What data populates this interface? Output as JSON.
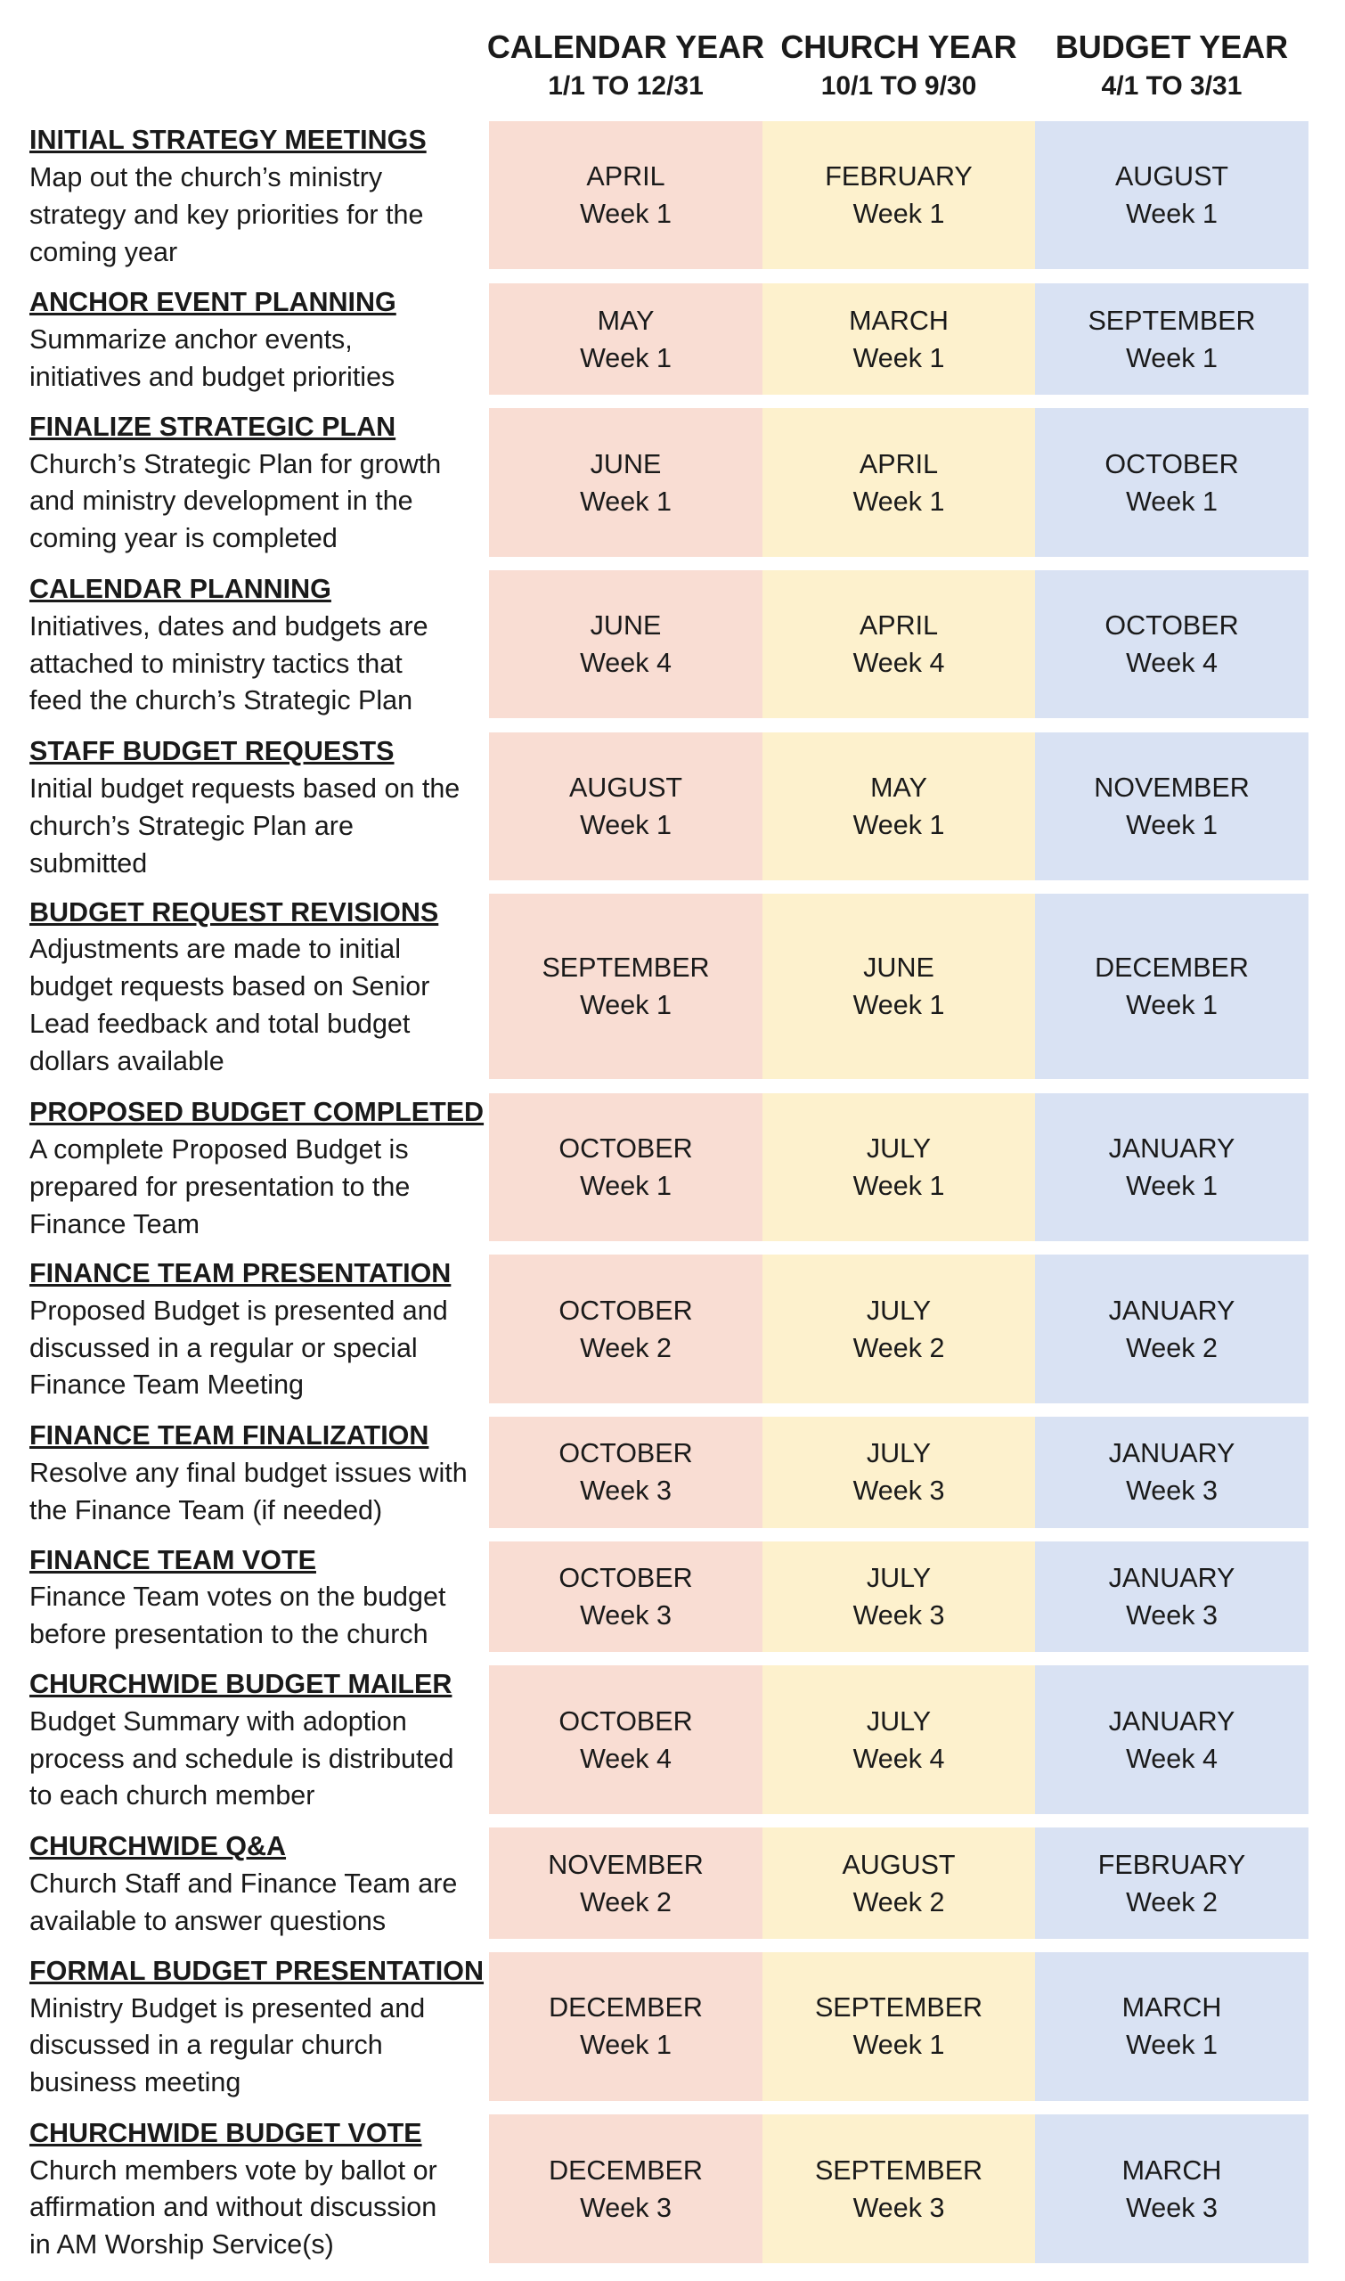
{
  "header": {
    "columns": [
      {
        "title": "CALENDAR YEAR",
        "range": "1/1 TO 12/31"
      },
      {
        "title": "CHURCH YEAR",
        "range": "10/1 TO 9/30"
      },
      {
        "title": "BUDGET YEAR",
        "range": "4/1 TO 3/31"
      }
    ]
  },
  "rows": [
    {
      "heading": "INITIAL STRATEGY MEETINGS",
      "lines": [
        "Map out the church’s ministry",
        "strategy and key priorities for the",
        "coming year"
      ],
      "cells": [
        {
          "month": "APRIL",
          "week": "Week 1"
        },
        {
          "month": "FEBRUARY",
          "week": "Week 1"
        },
        {
          "month": "AUGUST",
          "week": "Week 1"
        }
      ]
    },
    {
      "heading": "ANCHOR EVENT PLANNING",
      "lines": [
        "Summarize anchor events,",
        "initiatives and budget priorities"
      ],
      "cells": [
        {
          "month": "MAY",
          "week": "Week 1"
        },
        {
          "month": "MARCH",
          "week": "Week 1"
        },
        {
          "month": "SEPTEMBER",
          "week": "Week 1"
        }
      ]
    },
    {
      "heading": "FINALIZE STRATEGIC PLAN",
      "lines": [
        "Church’s Strategic Plan for growth",
        "and ministry development in the",
        "coming year is completed"
      ],
      "cells": [
        {
          "month": "JUNE",
          "week": "Week 1"
        },
        {
          "month": "APRIL",
          "week": "Week 1"
        },
        {
          "month": "OCTOBER",
          "week": "Week 1"
        }
      ]
    },
    {
      "heading": "CALENDAR PLANNING",
      "lines": [
        "Initiatives, dates and budgets are",
        "attached to ministry tactics that",
        "feed the church’s Strategic Plan"
      ],
      "cells": [
        {
          "month": "JUNE",
          "week": "Week 4"
        },
        {
          "month": "APRIL",
          "week": "Week 4"
        },
        {
          "month": "OCTOBER",
          "week": "Week 4"
        }
      ]
    },
    {
      "heading": "STAFF BUDGET REQUESTS",
      "lines": [
        "Initial budget requests based on the",
        "church’s Strategic Plan are",
        "submitted"
      ],
      "cells": [
        {
          "month": "AUGUST",
          "week": "Week 1"
        },
        {
          "month": "MAY",
          "week": "Week 1"
        },
        {
          "month": "NOVEMBER",
          "week": "Week 1"
        }
      ]
    },
    {
      "heading": "BUDGET REQUEST REVISIONS",
      "lines": [
        "Adjustments are made to initial",
        "budget requests based on Senior",
        "Lead feedback and total budget",
        "dollars available"
      ],
      "cells": [
        {
          "month": "SEPTEMBER",
          "week": "Week 1"
        },
        {
          "month": "JUNE",
          "week": "Week 1"
        },
        {
          "month": "DECEMBER",
          "week": "Week 1"
        }
      ]
    },
    {
      "heading": "PROPOSED BUDGET COMPLETED",
      "lines": [
        "A complete Proposed Budget is",
        "prepared for presentation to the",
        "Finance Team"
      ],
      "cells": [
        {
          "month": "OCTOBER",
          "week": "Week 1"
        },
        {
          "month": "JULY",
          "week": "Week 1"
        },
        {
          "month": "JANUARY",
          "week": "Week 1"
        }
      ]
    },
    {
      "heading": "FINANCE TEAM PRESENTATION",
      "lines": [
        "Proposed Budget is presented and",
        "discussed in a regular or special",
        "Finance Team Meeting"
      ],
      "cells": [
        {
          "month": "OCTOBER",
          "week": "Week 2"
        },
        {
          "month": "JULY",
          "week": "Week 2"
        },
        {
          "month": "JANUARY",
          "week": "Week 2"
        }
      ]
    },
    {
      "heading": "FINANCE TEAM FINALIZATION",
      "lines": [
        "Resolve any final budget issues with",
        "the Finance Team (if needed)"
      ],
      "cells": [
        {
          "month": "OCTOBER",
          "week": "Week 3"
        },
        {
          "month": "JULY",
          "week": "Week 3"
        },
        {
          "month": "JANUARY",
          "week": "Week 3"
        }
      ]
    },
    {
      "heading": "FINANCE TEAM VOTE",
      "lines": [
        "Finance Team votes on the budget",
        "before presentation to the church"
      ],
      "cells": [
        {
          "month": "OCTOBER",
          "week": "Week 3"
        },
        {
          "month": "JULY",
          "week": "Week 3"
        },
        {
          "month": "JANUARY",
          "week": "Week 3"
        }
      ]
    },
    {
      "heading": "CHURCHWIDE BUDGET MAILER",
      "lines": [
        "Budget Summary with adoption",
        "process and schedule is distributed",
        "to each church member"
      ],
      "cells": [
        {
          "month": "OCTOBER",
          "week": "Week 4"
        },
        {
          "month": "JULY",
          "week": "Week 4"
        },
        {
          "month": "JANUARY",
          "week": "Week 4"
        }
      ]
    },
    {
      "heading": "CHURCHWIDE Q&A",
      "lines": [
        "Church Staff and Finance Team are",
        "available to answer questions"
      ],
      "cells": [
        {
          "month": "NOVEMBER",
          "week": "Week 2"
        },
        {
          "month": "AUGUST",
          "week": "Week 2"
        },
        {
          "month": "FEBRUARY",
          "week": "Week 2"
        }
      ]
    },
    {
      "heading": "FORMAL BUDGET PRESENTATION",
      "lines": [
        "Ministry Budget is presented and",
        "discussed in a regular church",
        "business meeting"
      ],
      "cells": [
        {
          "month": "DECEMBER",
          "week": "Week 1"
        },
        {
          "month": "SEPTEMBER",
          "week": "Week 1"
        },
        {
          "month": "MARCH",
          "week": "Week 1"
        }
      ]
    },
    {
      "heading": "CHURCHWIDE BUDGET VOTE",
      "lines": [
        "Church members vote by ballot or",
        "affirmation and without discussion",
        "in AM Worship Service(s)"
      ],
      "cells": [
        {
          "month": "DECEMBER",
          "week": "Week 3"
        },
        {
          "month": "SEPTEMBER",
          "week": "Week 3"
        },
        {
          "month": "MARCH",
          "week": "Week 3"
        }
      ]
    }
  ]
}
